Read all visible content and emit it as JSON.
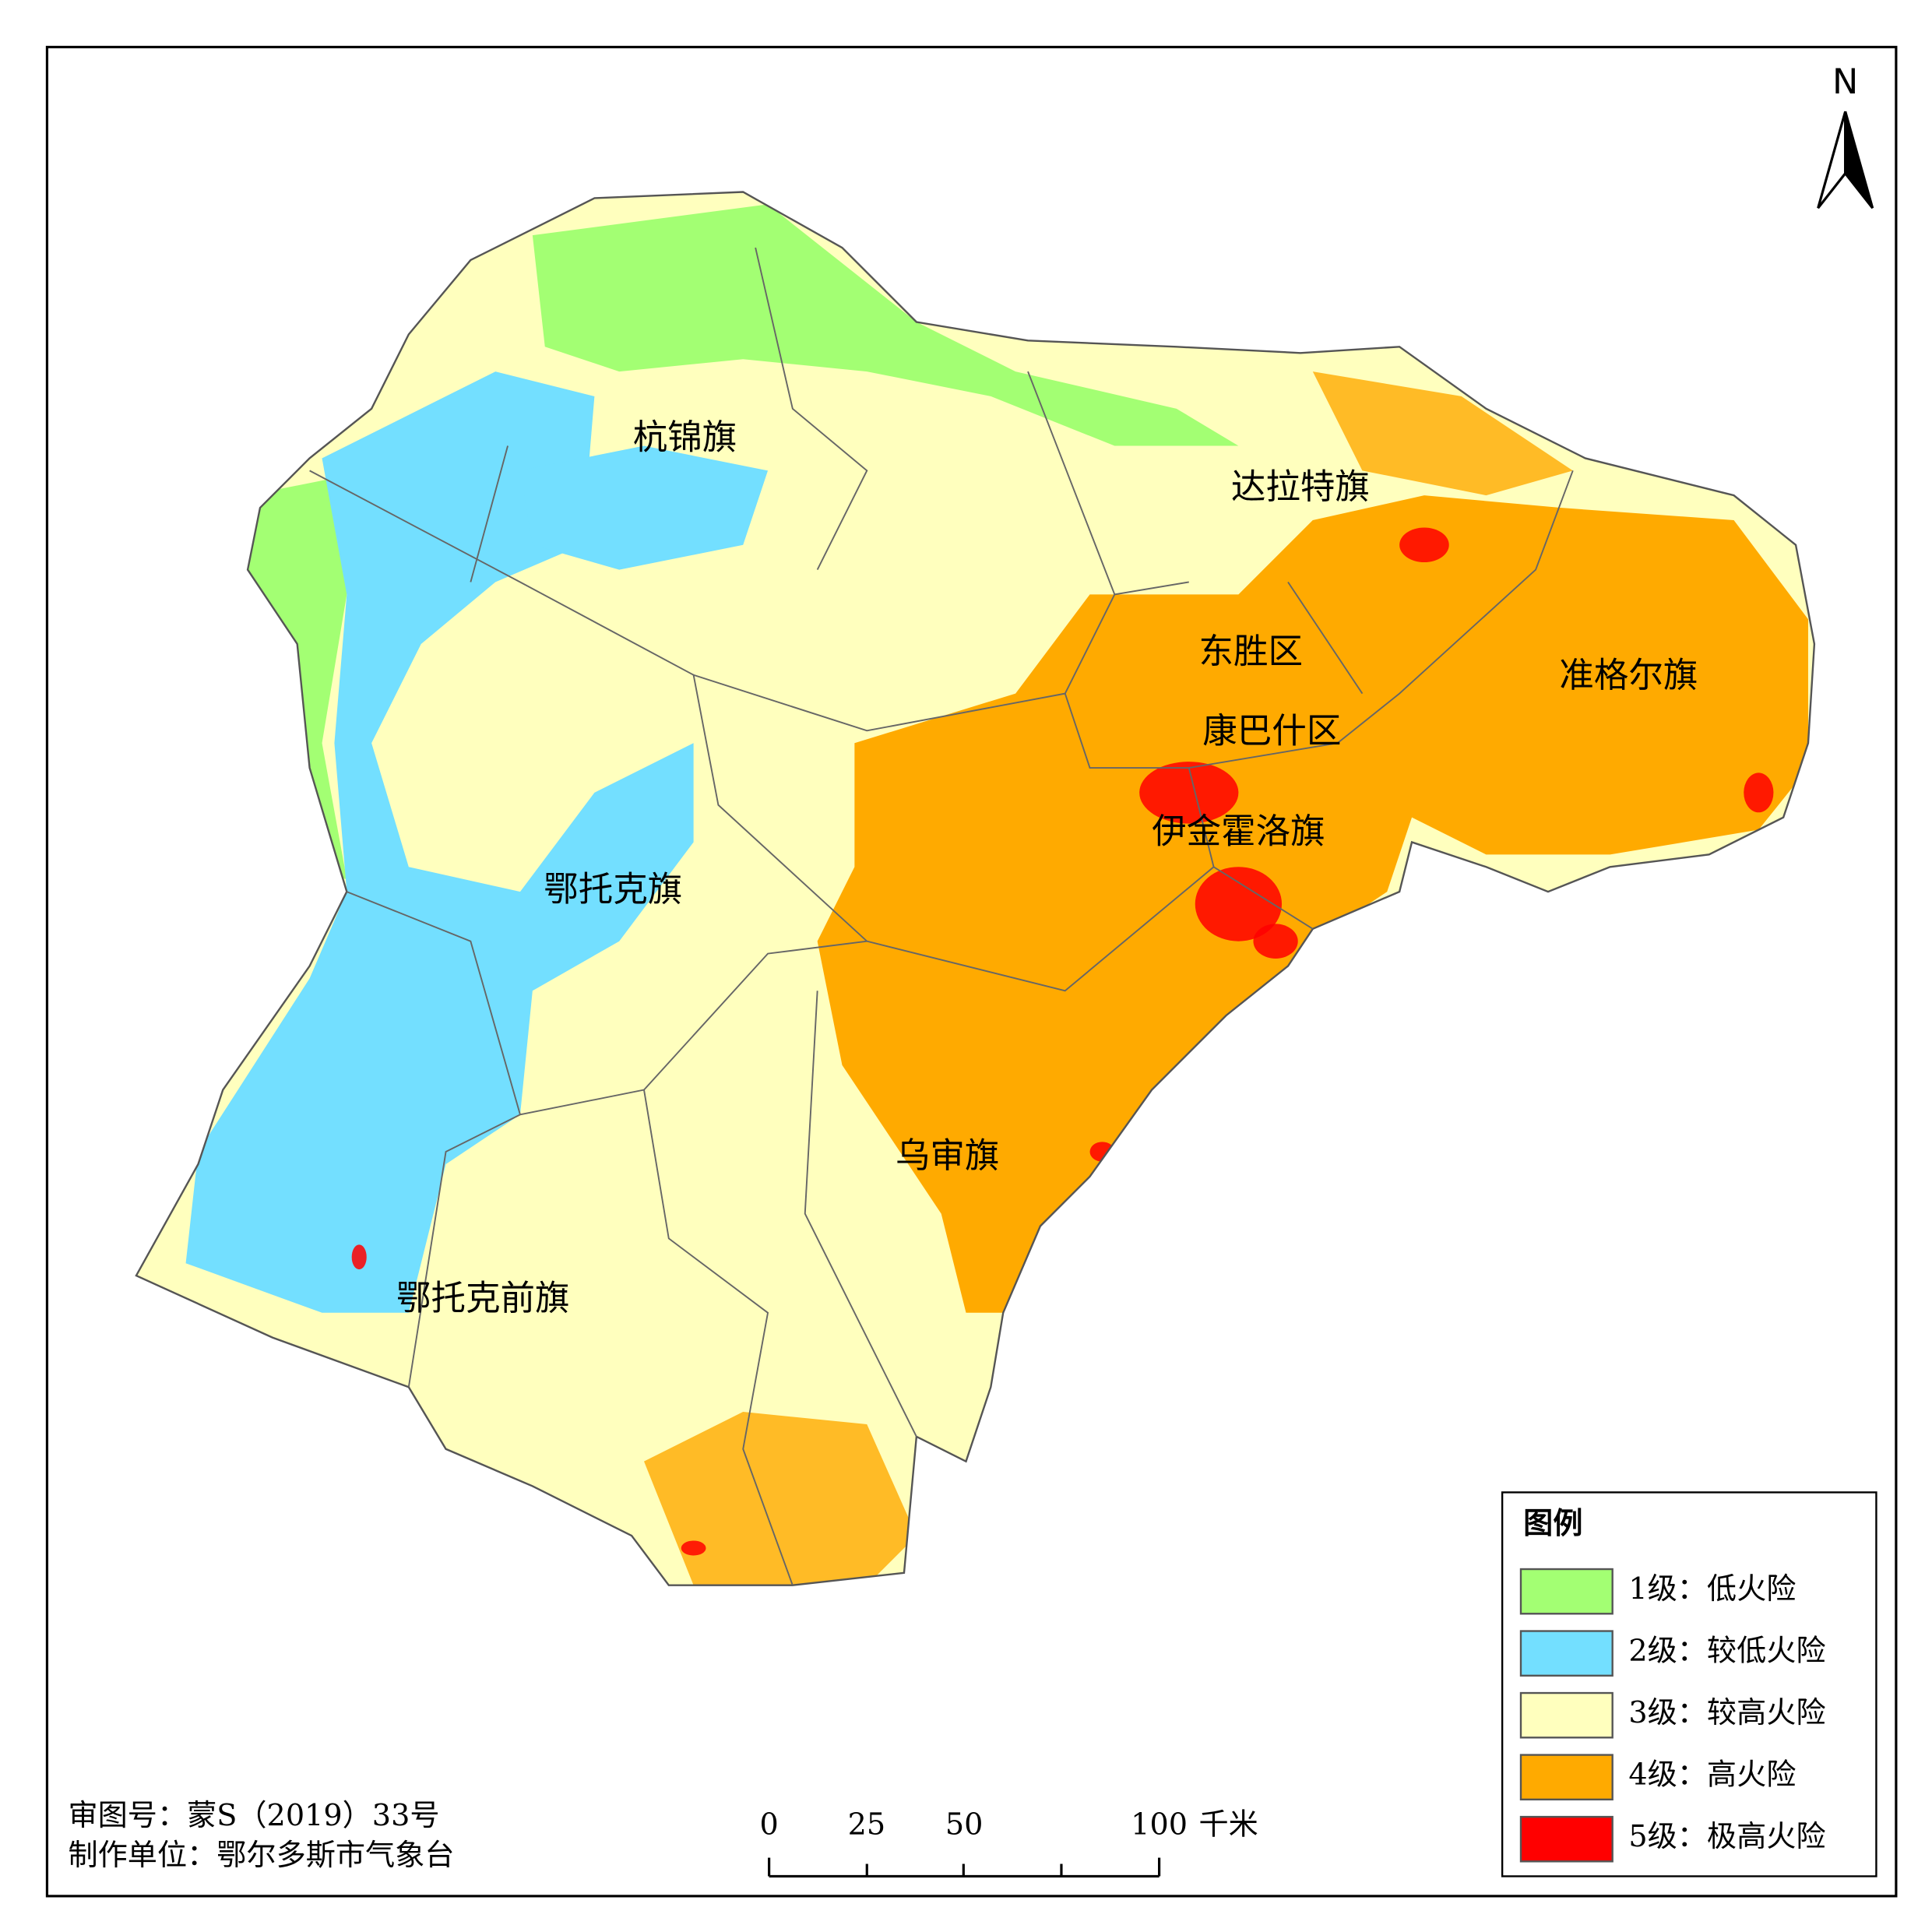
{
  "north": "N",
  "districts": [
    "杭锦旗",
    "达拉特旗",
    "东胜区",
    "准格尔旗",
    "康巴什区",
    "伊金霍洛旗",
    "鄂托克旗",
    "乌审旗",
    "鄂托克前旗"
  ],
  "legend": {
    "title": "图例",
    "items": [
      {
        "label": "1级：低火险",
        "color": "#a3ff73"
      },
      {
        "label": "2级：较低火险",
        "color": "#73dfff"
      },
      {
        "label": "3级：较高火险",
        "color": "#ffffbe"
      },
      {
        "label": "4级：高火险",
        "color": "#ffaa00"
      },
      {
        "label": "5级：极高火险",
        "color": "#ff0000"
      }
    ]
  },
  "scale_bar": {
    "labels": [
      0,
      25,
      50,
      100
    ],
    "unit": "千米"
  },
  "footer": [
    "审图号：蒙S（2019）33号",
    "制作单位：鄂尔多斯市气象台"
  ]
}
